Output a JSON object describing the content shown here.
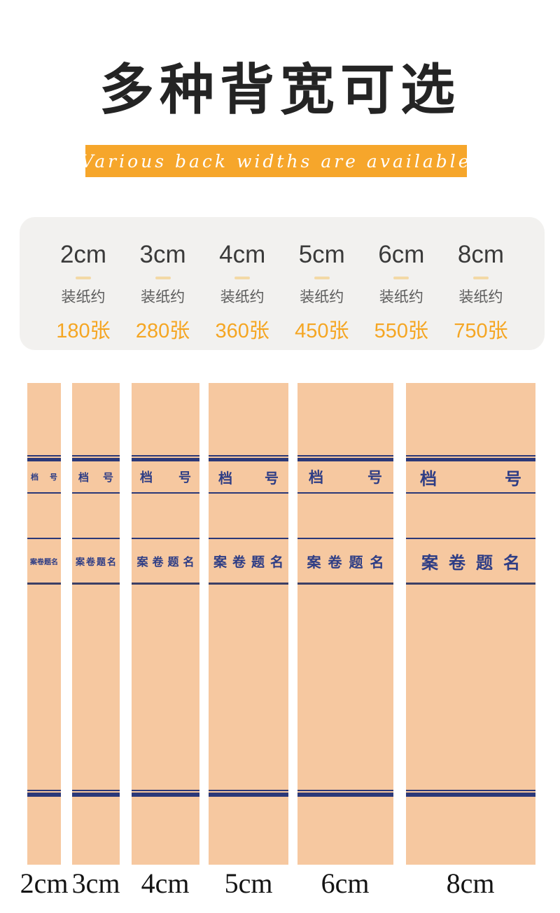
{
  "header": {
    "title": "多种背宽可选",
    "subtitle": "Various back widths are available"
  },
  "specs": {
    "items": [
      {
        "size": "2cm",
        "capacity_label": "装纸约",
        "capacity": "180张"
      },
      {
        "size": "3cm",
        "capacity_label": "装纸约",
        "capacity": "280张"
      },
      {
        "size": "4cm",
        "capacity_label": "装纸约",
        "capacity": "360张"
      },
      {
        "size": "5cm",
        "capacity_label": "装纸约",
        "capacity": "450张"
      },
      {
        "size": "6cm",
        "capacity_label": "装纸约",
        "capacity": "550张"
      },
      {
        "size": "8cm",
        "capacity_label": "装纸约",
        "capacity": "750张"
      }
    ]
  },
  "spines": {
    "file_no_left": "档",
    "file_no_right": "号",
    "title_label": "案卷题名",
    "items": [
      {
        "size_label": "2cm"
      },
      {
        "size_label": "3cm"
      },
      {
        "size_label": "4cm"
      },
      {
        "size_label": "5cm"
      },
      {
        "size_label": "6cm"
      },
      {
        "size_label": "8cm"
      }
    ]
  },
  "colors": {
    "banner_orange": "#f6a62b",
    "capacity_orange": "#f5a623",
    "spine_tan": "#f6c8a0",
    "line_navy": "#2b3878",
    "card_gray": "#f2f1ef"
  }
}
